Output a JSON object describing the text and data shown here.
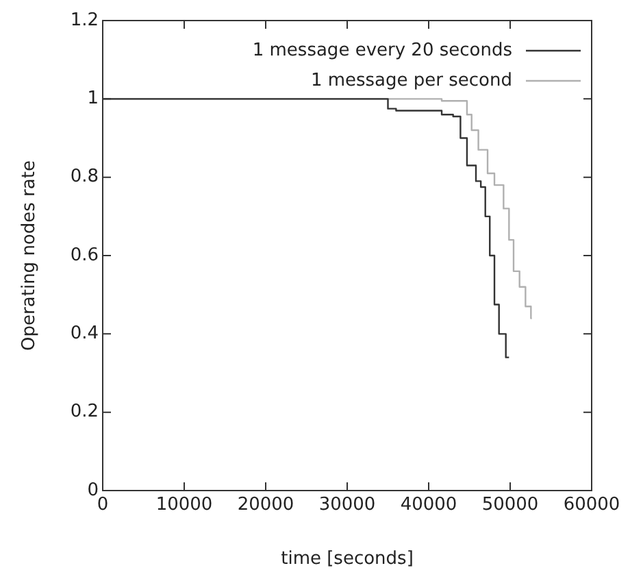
{
  "chart_data": {
    "type": "step",
    "xlabel": "time [seconds]",
    "ylabel": "Operating nodes rate",
    "xlim": [
      0,
      60000
    ],
    "xticks": [
      0,
      10000,
      20000,
      30000,
      40000,
      50000,
      60000
    ],
    "ylim": [
      0,
      1.2
    ],
    "yticks": [
      0,
      0.2,
      0.4,
      0.6,
      0.8,
      1,
      1.2
    ],
    "grid": false,
    "legend": "top right",
    "marker": "none",
    "line_style": "solid",
    "series": [
      {
        "name": "1 message every 20 seconds",
        "color": "#333333",
        "x": [
          0,
          35000,
          36000,
          41600,
          43000,
          43900,
          44700,
          45800,
          46400,
          46950,
          47500,
          48070,
          48630,
          49470,
          49860
        ],
        "values": [
          1,
          1,
          0.975,
          0.97,
          0.96,
          0.955,
          0.9,
          0.83,
          0.79,
          0.775,
          0.7,
          0.6,
          0.475,
          0.4,
          0.34
        ]
      },
      {
        "name": "1 message per second",
        "color": "#b0b0b0",
        "x": [
          0,
          41600,
          44700,
          45270,
          46100,
          47230,
          48070,
          49190,
          49860,
          50420,
          51150,
          51880,
          52550,
          52660
        ],
        "values": [
          1,
          1,
          0.995,
          0.96,
          0.92,
          0.87,
          0.81,
          0.78,
          0.72,
          0.64,
          0.56,
          0.52,
          0.47,
          0.44
        ]
      }
    ]
  }
}
